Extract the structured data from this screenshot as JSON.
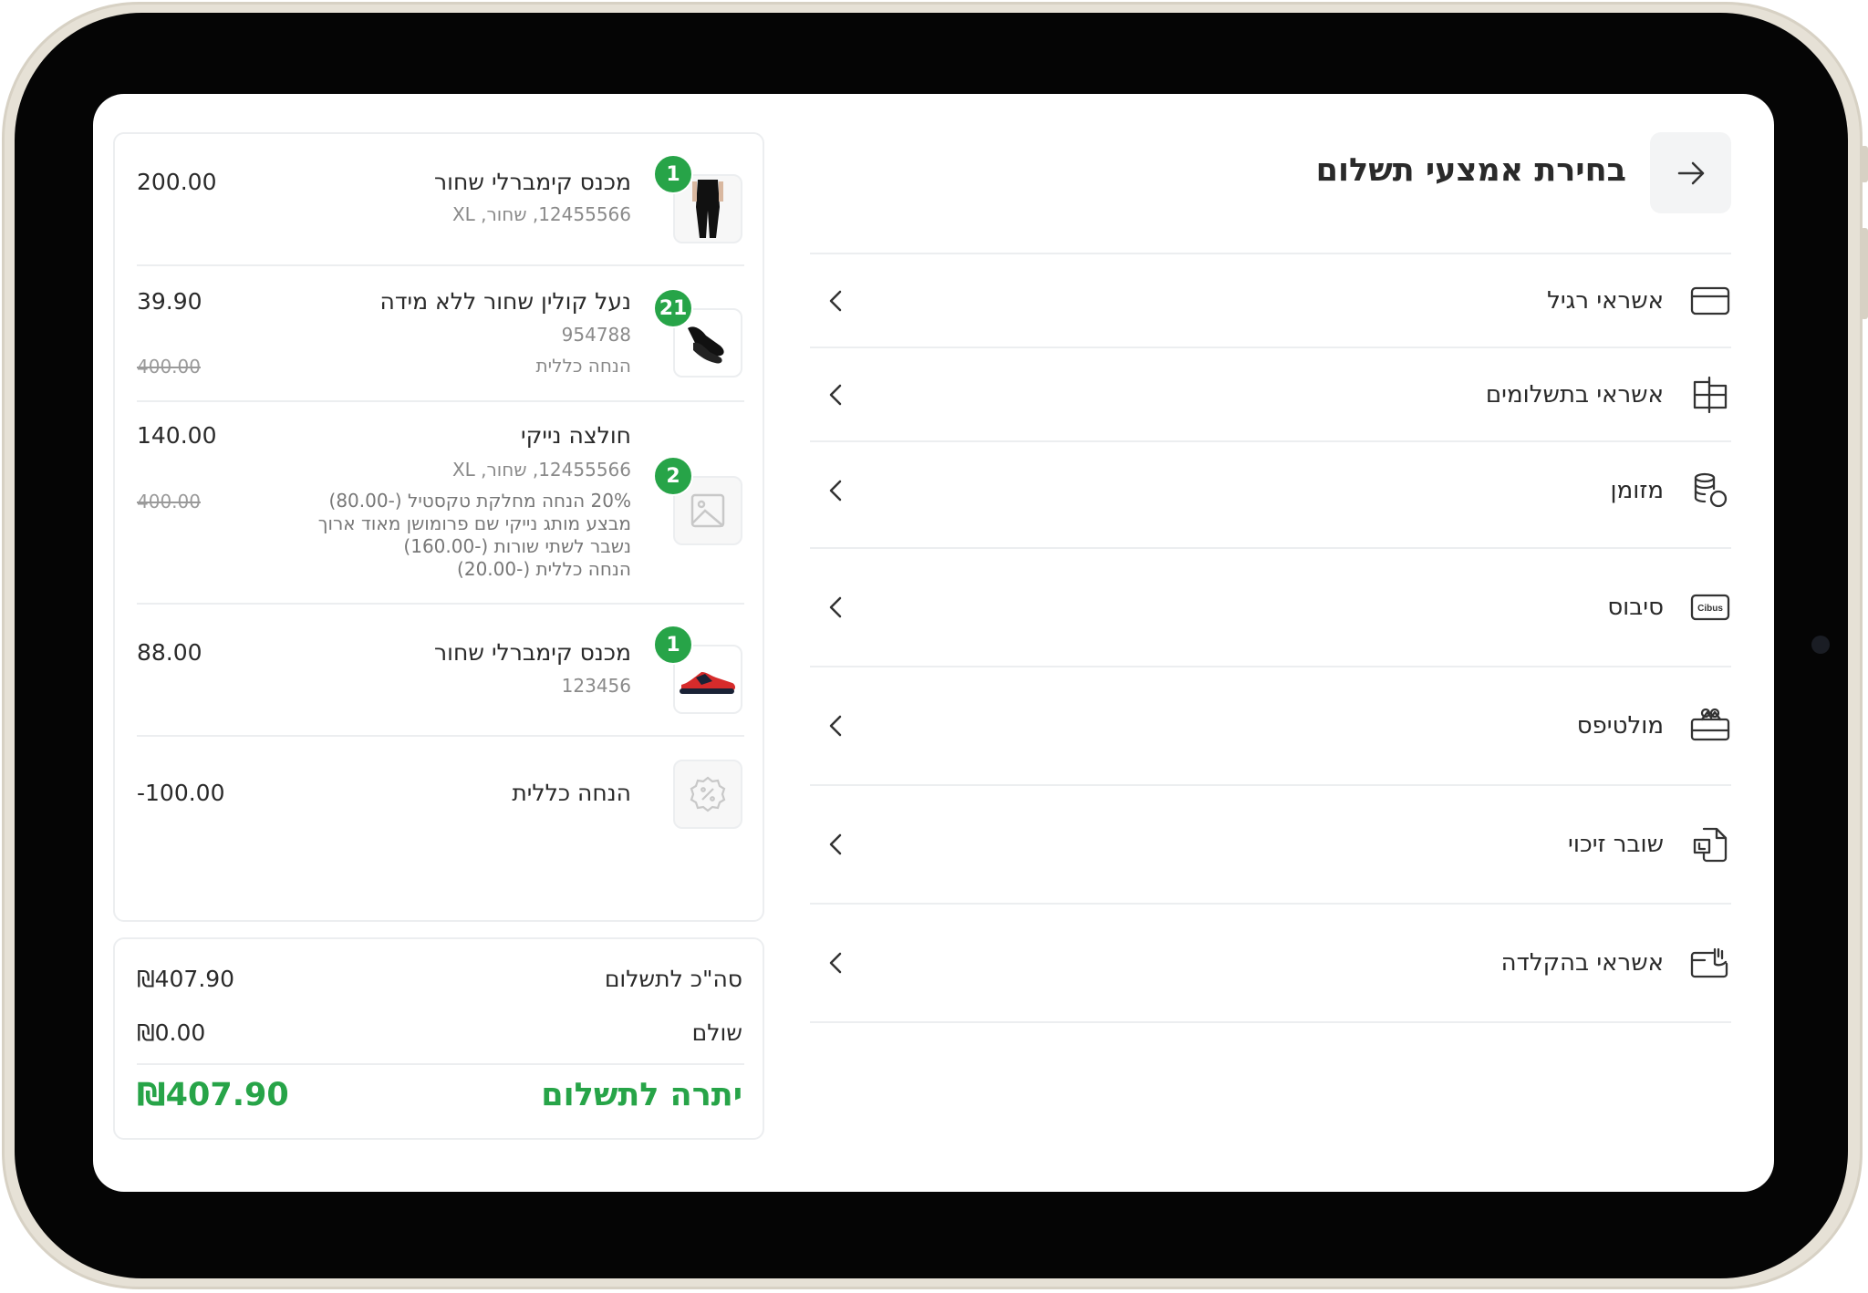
{
  "header": {
    "title": "בחירת אמצעי תשלום",
    "back_icon": "arrow-right-icon"
  },
  "payment_methods": [
    {
      "label": "אשראי רגיל",
      "icon": "credit-card-icon"
    },
    {
      "label": "אשראי בתשלומים",
      "icon": "installments-card-icon"
    },
    {
      "label": "מזומן",
      "icon": "cash-coins-icon"
    },
    {
      "label": "סיבוס",
      "icon": "cibus-icon",
      "icon_text": "Cibus"
    },
    {
      "label": "מולטיפס",
      "icon": "gift-card-icon"
    },
    {
      "label": "שובר זיכוי",
      "icon": "credit-voucher-icon"
    },
    {
      "label": "אשראי בהקלדה",
      "icon": "manual-card-entry-icon"
    }
  ],
  "cart": {
    "items": [
      {
        "name": "מכנס קימברלי שחור",
        "sub": "12455566, שחור, XL",
        "price": "200.00",
        "qty": "1",
        "image": "pants"
      },
      {
        "name": "נעל קולין שחור ללא מידה",
        "sub": "954788",
        "discount": "הנחה כללית",
        "price": "39.90",
        "original_price": "400.00",
        "qty": "21",
        "image": "dress-shoes"
      },
      {
        "name": "חולצה נייקי",
        "sub": "12455566, שחור, XL",
        "discount_lines": [
          "20% הנחה מחלקת טקסטיל (-80.00)",
          "מבצע מותג נייקי שם פרומושן מאוד ארוך",
          "נשבר לשתי שורות (-160.00)",
          "הנחה כללית (-20.00)"
        ],
        "price": "140.00",
        "original_price": "400.00",
        "qty": "2",
        "image": "placeholder"
      },
      {
        "name": "מכנס קימברלי שחור",
        "sub": "123456",
        "price": "88.00",
        "qty": "1",
        "image": "sneaker"
      }
    ],
    "general_discount": {
      "label": "הנחה כללית",
      "amount": "-100.00",
      "icon": "discount-badge-icon"
    }
  },
  "summary": {
    "total_label": "סה\"כ לתשלום",
    "total": "₪407.90",
    "paid_label": "שולם",
    "paid": "₪0.00",
    "remaining_label": "יתרה לתשלום",
    "remaining": "₪407.90"
  },
  "colors": {
    "accent": "#27a448",
    "bezel": "#e6e1d6"
  }
}
